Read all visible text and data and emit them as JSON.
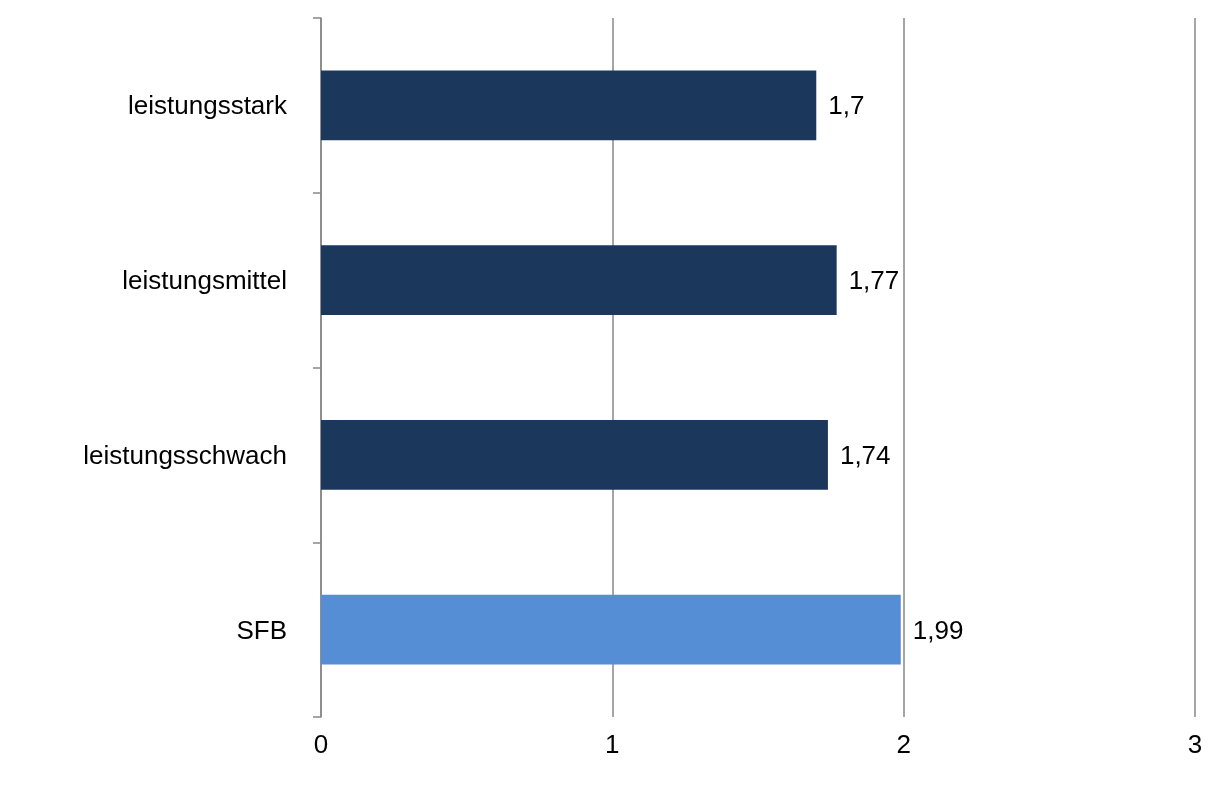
{
  "chart_data": {
    "type": "bar",
    "orientation": "horizontal",
    "categories": [
      "leistungsstark",
      "leistungsmittel",
      "leistungsschwach",
      "SFB"
    ],
    "values": [
      1.7,
      1.77,
      1.74,
      1.99
    ],
    "colors": [
      "#1b375c",
      "#1b375c",
      "#1b375c",
      "#558ed5"
    ],
    "value_labels": [
      "1,7",
      "1,77",
      "1,74",
      "1,99"
    ],
    "xlim": [
      0,
      3
    ],
    "xticks": [
      0,
      1,
      2,
      3
    ],
    "grid": "x"
  }
}
